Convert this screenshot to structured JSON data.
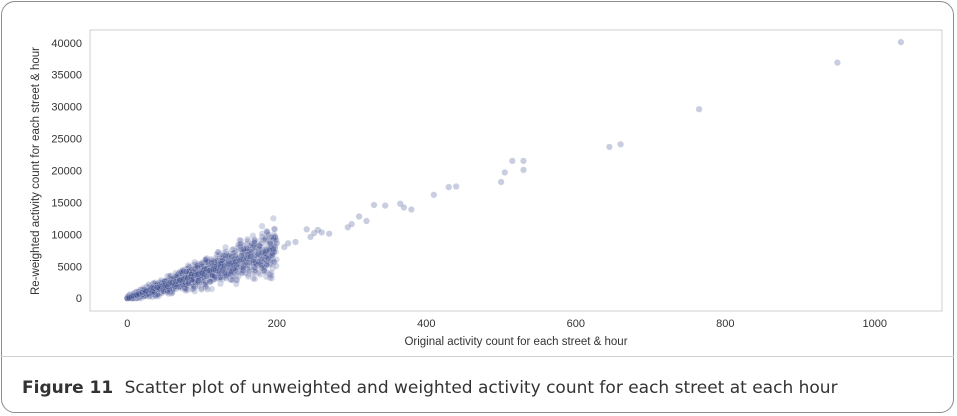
{
  "figure": {
    "label": "Figure 11",
    "caption": "Scatter plot of unweighted and weighted activity count for each street at each hour"
  },
  "colors": {
    "point": "#3b4a8c",
    "axes_frame": "#cfcfcf",
    "text": "#333333"
  },
  "chart_data": {
    "type": "scatter",
    "title": "",
    "xlabel": "Original activity count for each street & hour",
    "ylabel": "Re-weighted activity count for each street & hour",
    "xlim": [
      -50,
      1090
    ],
    "ylim": [
      -2000,
      42000
    ],
    "xticks": [
      0,
      200,
      400,
      600,
      800,
      1000
    ],
    "yticks": [
      0,
      5000,
      10000,
      15000,
      20000,
      25000,
      30000,
      35000,
      40000
    ],
    "grid": false,
    "legend": "none",
    "approx_slope": 38.8,
    "cluster": {
      "x_range": [
        0,
        200
      ],
      "y_range": [
        0,
        8500
      ],
      "description_points": "dense cluster"
    },
    "x": [
      0,
      2,
      5,
      8,
      12,
      15,
      20,
      25,
      30,
      35,
      40,
      45,
      50,
      55,
      60,
      65,
      70,
      75,
      80,
      85,
      90,
      95,
      100,
      105,
      110,
      115,
      120,
      125,
      130,
      135,
      140,
      145,
      150,
      155,
      160,
      165,
      170,
      175,
      180,
      185,
      190,
      195,
      200,
      210,
      215,
      225,
      240,
      245,
      250,
      255,
      260,
      270,
      295,
      300,
      310,
      320,
      330,
      345,
      365,
      370,
      380,
      410,
      430,
      440,
      500,
      505,
      515,
      530,
      530,
      645,
      660,
      765,
      950,
      1035
    ],
    "y": [
      0,
      100,
      200,
      400,
      500,
      700,
      900,
      1100,
      1300,
      1500,
      1700,
      1800,
      2000,
      2200,
      2400,
      2600,
      2800,
      3000,
      3200,
      3400,
      3600,
      3800,
      3900,
      4100,
      4300,
      4500,
      4700,
      4900,
      5100,
      5300,
      5500,
      5700,
      5900,
      6100,
      6300,
      6500,
      6700,
      6900,
      7100,
      7300,
      7500,
      7700,
      8600,
      8000,
      8600,
      8800,
      10800,
      9600,
      10200,
      10700,
      10300,
      10100,
      11100,
      11600,
      12800,
      12100,
      14600,
      14500,
      14800,
      14200,
      13900,
      16200,
      17400,
      17500,
      18200,
      19700,
      21500,
      21500,
      20100,
      23700,
      24100,
      29600,
      36900,
      40100
    ]
  }
}
